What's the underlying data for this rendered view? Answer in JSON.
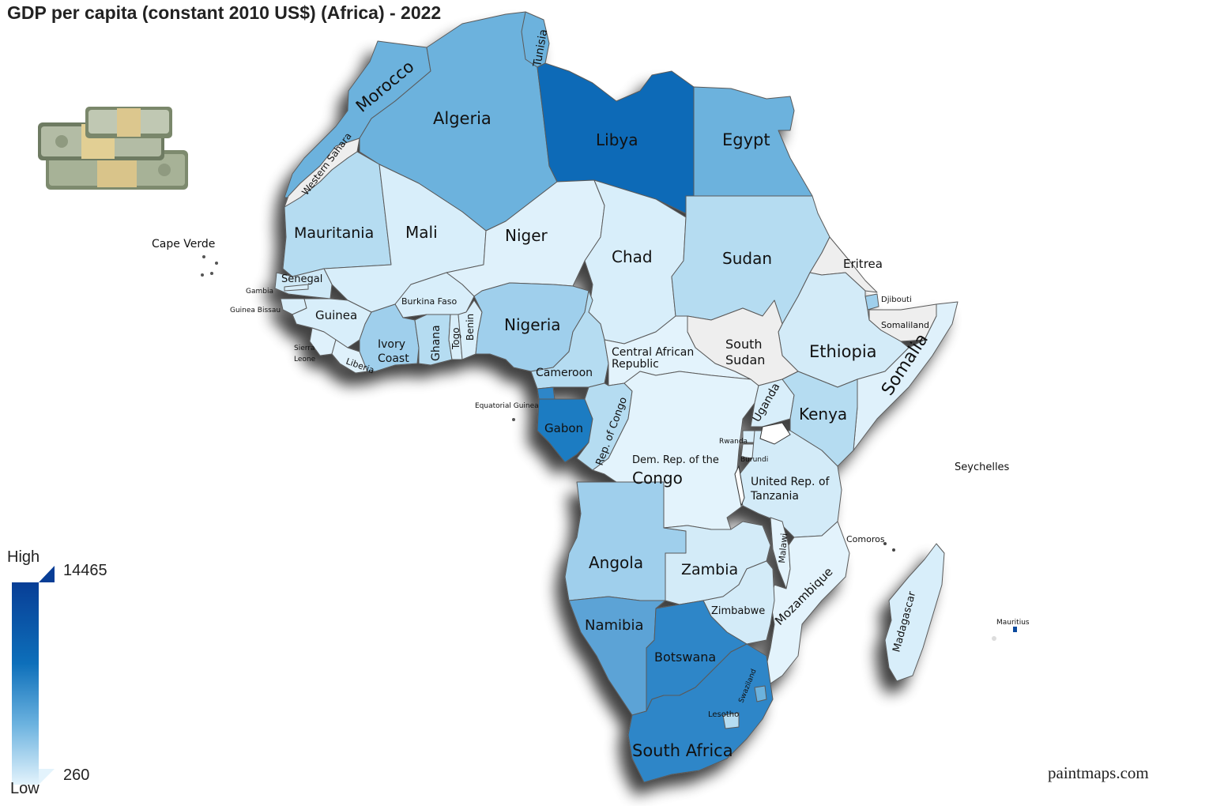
{
  "title": "GDP per capita (constant 2010 US$) (Africa) - 2022",
  "legend": {
    "high_label": "High",
    "low_label": "Low",
    "max_value": "14465",
    "min_value": "260",
    "color_high": "#083e96",
    "color_mid": "#6bb2df",
    "color_low": "#e3f3fc",
    "no_data_color": "#eeeeee"
  },
  "decoration_icon": "money-stack-icon",
  "watermark": "paintmaps.com",
  "countries": {
    "morocco": {
      "label": "Morocco",
      "color": "#6cb2dd"
    },
    "algeria": {
      "label": "Algeria",
      "color": "#6cb2dd"
    },
    "tunisia": {
      "label": "Tunisia",
      "color": "#6cb2dd"
    },
    "libya": {
      "label": "Libya",
      "color": "#0b6bb7"
    },
    "egypt": {
      "label": "Egypt",
      "color": "#6cb2dd"
    },
    "western_sahara": {
      "label": "Western Sahara",
      "color": "#eeeeee"
    },
    "mauritania": {
      "label": "Mauritania",
      "color": "#b5dcf1"
    },
    "mali": {
      "label": "Mali",
      "color": "#d8eefa"
    },
    "niger": {
      "label": "Niger",
      "color": "#dff1fb"
    },
    "chad": {
      "label": "Chad",
      "color": "#d8eefa"
    },
    "sudan": {
      "label": "Sudan",
      "color": "#b5dcf1"
    },
    "eritrea": {
      "label": "Eritrea",
      "color": "#eeeeee"
    },
    "djibouti": {
      "label": "Djibouti",
      "color": "#9fcfec"
    },
    "somaliland": {
      "label": "Somaliland",
      "color": "#eeeeee"
    },
    "ethiopia": {
      "label": "Ethiopia",
      "color": "#d3ebf8"
    },
    "somalia": {
      "label": "Somalia",
      "color": "#dff1fb"
    },
    "south_sudan": {
      "label1": "South",
      "label2": "Sudan",
      "color": "#eeeeee"
    },
    "senegal": {
      "label": "Senegal",
      "color": "#cfe9f7"
    },
    "gambia": {
      "label": "Gambia",
      "color": "#d8eefa"
    },
    "guinea_bissau": {
      "label": "Guinea Bissau",
      "color": "#d8eefa"
    },
    "guinea": {
      "label": "Guinea",
      "color": "#d8eefa"
    },
    "sierra_leone": {
      "label1": "Sierra",
      "label2": "Leone",
      "color": "#dff1fb"
    },
    "liberia": {
      "label": "Liberia",
      "color": "#dff1fb"
    },
    "burkina_faso": {
      "label": "Burkina Faso",
      "color": "#d8eefa"
    },
    "ivory_coast": {
      "label1": "Ivory",
      "label2": "Coast",
      "color": "#9fcfec"
    },
    "ghana": {
      "label": "Ghana",
      "color": "#b5dcf1"
    },
    "togo": {
      "label": "Togo",
      "color": "#d8eefa"
    },
    "benin": {
      "label": "Benin",
      "color": "#d8eefa"
    },
    "nigeria": {
      "label": "Nigeria",
      "color": "#9fcfec"
    },
    "cameroon": {
      "label": "Cameroon",
      "color": "#b5dcf1"
    },
    "car": {
      "label1": "Central African",
      "label2": "Republic",
      "color": "#e3f3fc"
    },
    "equatorial_guinea": {
      "label": "Equatorial Guinea",
      "color": "#2f86c8"
    },
    "gabon": {
      "label": "Gabon",
      "color": "#1a7bc2"
    },
    "rep_congo": {
      "label": "Rep. of Congo",
      "color": "#b5dcf1"
    },
    "drc": {
      "label1": "Dem. Rep. of the",
      "label2": "Congo",
      "color": "#e3f3fc"
    },
    "uganda": {
      "label": "Uganda",
      "color": "#d8eefa"
    },
    "kenya": {
      "label": "Kenya",
      "color": "#b5dcf1"
    },
    "rwanda": {
      "label": "Rwanda",
      "color": "#d8eefa"
    },
    "burundi": {
      "label": "Burundi",
      "color": "#e3f3fc"
    },
    "tanzania": {
      "label1": "United Rep. of",
      "label2": "Tanzania",
      "color": "#d3ebf8"
    },
    "angola": {
      "label": "Angola",
      "color": "#9fcfec"
    },
    "zambia": {
      "label": "Zambia",
      "color": "#d3ebf8"
    },
    "malawi": {
      "label": "Malawi",
      "color": "#e3f3fc"
    },
    "mozambique": {
      "label": "Mozambique",
      "color": "#e3f3fc"
    },
    "zimbabwe": {
      "label": "Zimbabwe",
      "color": "#d3ebf8"
    },
    "namibia": {
      "label": "Namibia",
      "color": "#5ca3d6"
    },
    "botswana": {
      "label": "Botswana",
      "color": "#2f86c8"
    },
    "south_africa": {
      "label": "South Africa",
      "color": "#2f86c8"
    },
    "swaziland": {
      "label": "Swaziland",
      "color": "#6cb2dd"
    },
    "lesotho": {
      "label": "Lesotho",
      "color": "#b5dcf1"
    },
    "madagascar": {
      "label": "Madagascar",
      "color": "#d8eefa"
    },
    "comoros": {
      "label": "Comoros",
      "color": "#d8eefa"
    },
    "mauritius": {
      "label": "Mauritius",
      "color": "#0b4a9e"
    },
    "seychelles": {
      "label": "Seychelles",
      "color": "#0b4a9e"
    },
    "cape_verde": {
      "label": "Cape Verde",
      "color": "#b5dcf1"
    }
  }
}
